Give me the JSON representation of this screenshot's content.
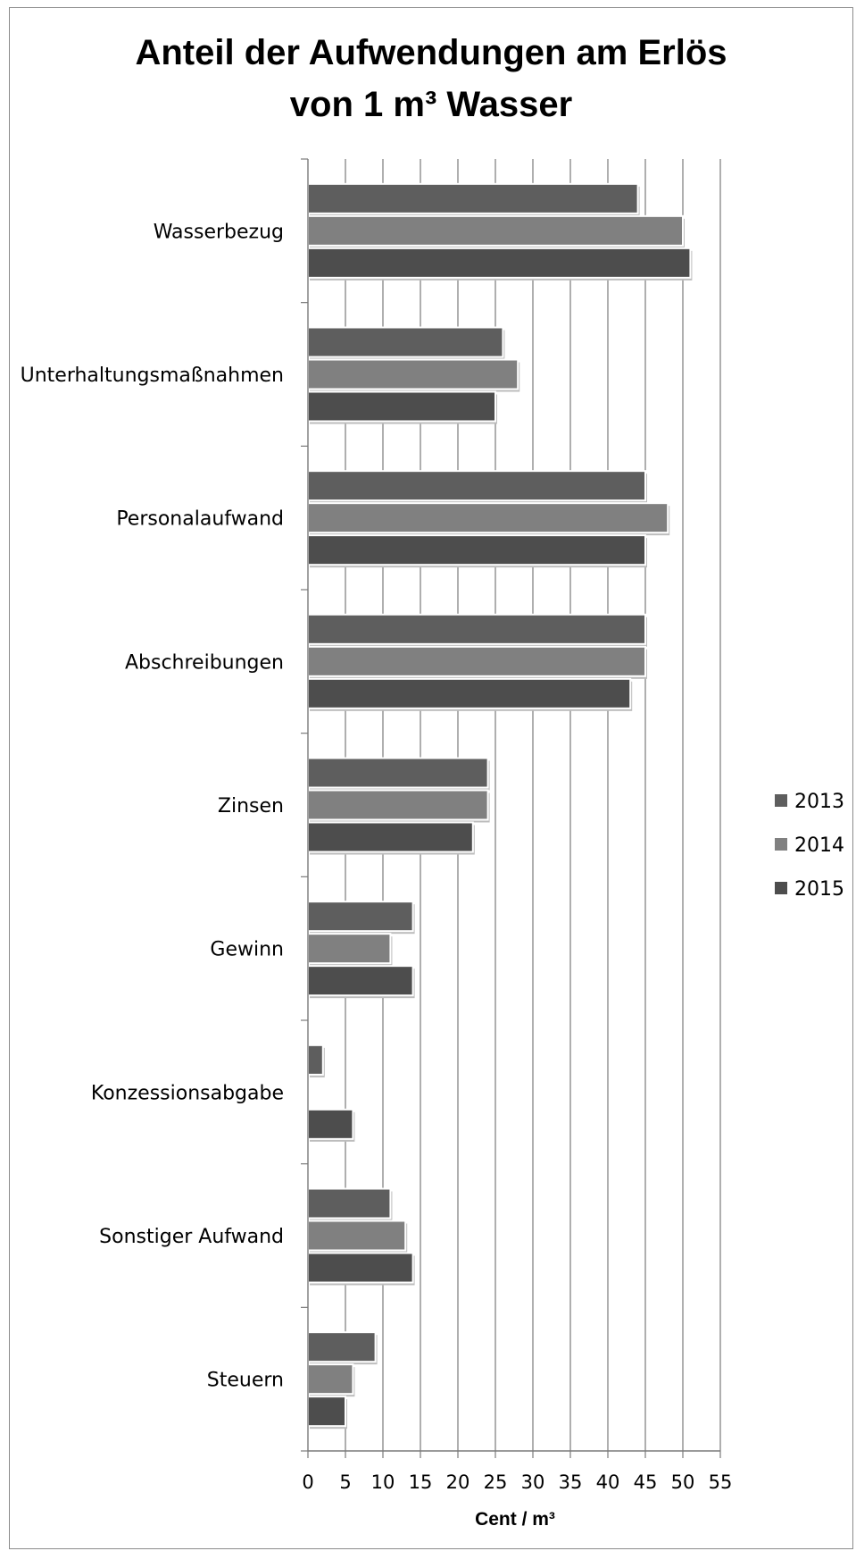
{
  "chart_data": {
    "type": "bar",
    "orientation": "horizontal",
    "title": [
      "Anteil der Aufwendungen am Erlös",
      "von 1 m³ Wasser"
    ],
    "xlabel": "Cent / m³",
    "ylabel": "",
    "xlim": [
      0,
      55
    ],
    "xticks": [
      0,
      5,
      10,
      15,
      20,
      25,
      30,
      35,
      40,
      45,
      50,
      55
    ],
    "grid": "vertical",
    "legend_position": "right",
    "categories": [
      "Wasserbezug",
      "Unterhaltungsmaßnahmen",
      "Personalaufwand",
      "Abschreibungen",
      "Zinsen",
      "Gewinn",
      "Konzessionsabgabe",
      "Sonstiger Aufwand",
      "Steuern"
    ],
    "series": [
      {
        "name": "2013",
        "color": "#5e5e5e",
        "values": [
          44,
          26,
          45,
          45,
          24,
          14,
          2,
          11,
          9
        ]
      },
      {
        "name": "2014",
        "color": "#808080",
        "values": [
          50,
          28,
          48,
          45,
          24,
          11,
          0,
          13,
          6
        ]
      },
      {
        "name": "2015",
        "color": "#4d4d4d",
        "values": [
          51,
          25,
          45,
          43,
          22,
          14,
          6,
          14,
          5
        ]
      }
    ]
  }
}
